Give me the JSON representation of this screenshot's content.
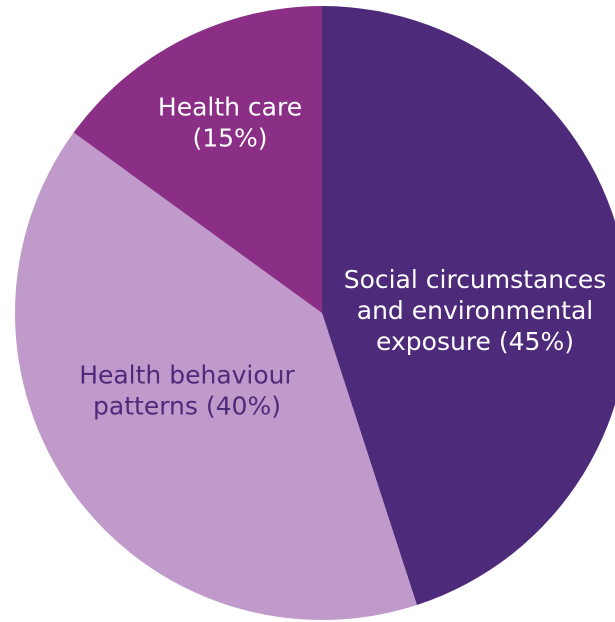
{
  "chart_data": {
    "type": "pie",
    "title": "",
    "start": "top",
    "direction": "clockwise",
    "slices": [
      {
        "name": "Social circumstances and environmental exposure",
        "value": 45,
        "color": "#4e2a7a",
        "label_color": "#ffffff",
        "label_lines": [
          "Social circumstances",
          "and environmental",
          "exposure (45%)"
        ]
      },
      {
        "name": "Health behaviour patterns",
        "value": 40,
        "color": "#bf9acb",
        "label_color": "#4e2a7a",
        "label_lines": [
          "Health behaviour",
          "patterns (40%)"
        ]
      },
      {
        "name": "Health care",
        "value": 15,
        "color": "#8a2e86",
        "label_color": "#ffffff",
        "label_lines": [
          "Health care",
          "(15%)"
        ]
      }
    ]
  }
}
